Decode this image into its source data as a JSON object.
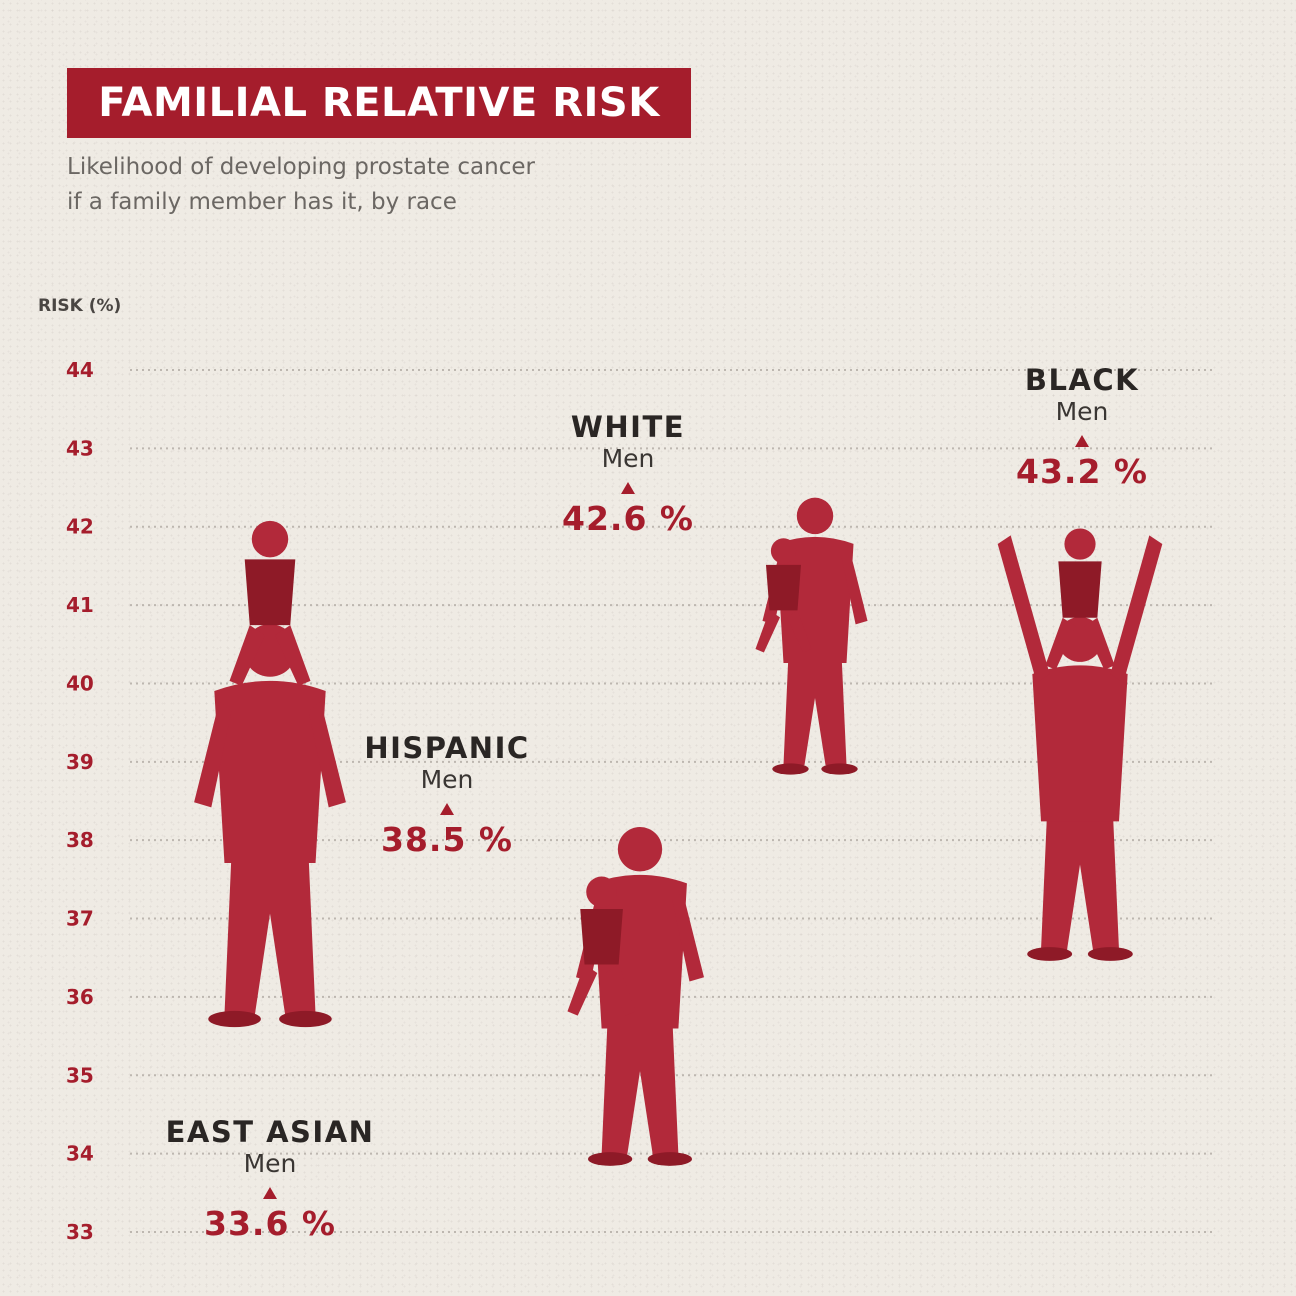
{
  "header": {
    "title": "FAMILIAL RELATIVE RISK",
    "subtitle_line1": "Likelihood of developing prostate cancer",
    "subtitle_line2": "if a family member has it, by race"
  },
  "colors": {
    "accent": "#a51d2c",
    "background": "#efebe4",
    "text_dark": "#2a2624",
    "grid": "#bdb7b0"
  },
  "chart_data": {
    "type": "bar",
    "ylabel": "RISK (%)",
    "ylim": [
      33,
      44
    ],
    "yticks": [
      44,
      43,
      42,
      41,
      40,
      39,
      38,
      37,
      36,
      35,
      34,
      33
    ],
    "grid": true,
    "categories": [
      {
        "name": "EAST ASIAN",
        "sub": "Men",
        "value": 33.6,
        "value_label": "33.6 %"
      },
      {
        "name": "HISPANIC",
        "sub": "Men",
        "value": 38.5,
        "value_label": "38.5 %"
      },
      {
        "name": "WHITE",
        "sub": "Men",
        "value": 42.6,
        "value_label": "42.6 %"
      },
      {
        "name": "BLACK",
        "sub": "Men",
        "value": 43.2,
        "value_label": "43.2 %"
      }
    ]
  }
}
